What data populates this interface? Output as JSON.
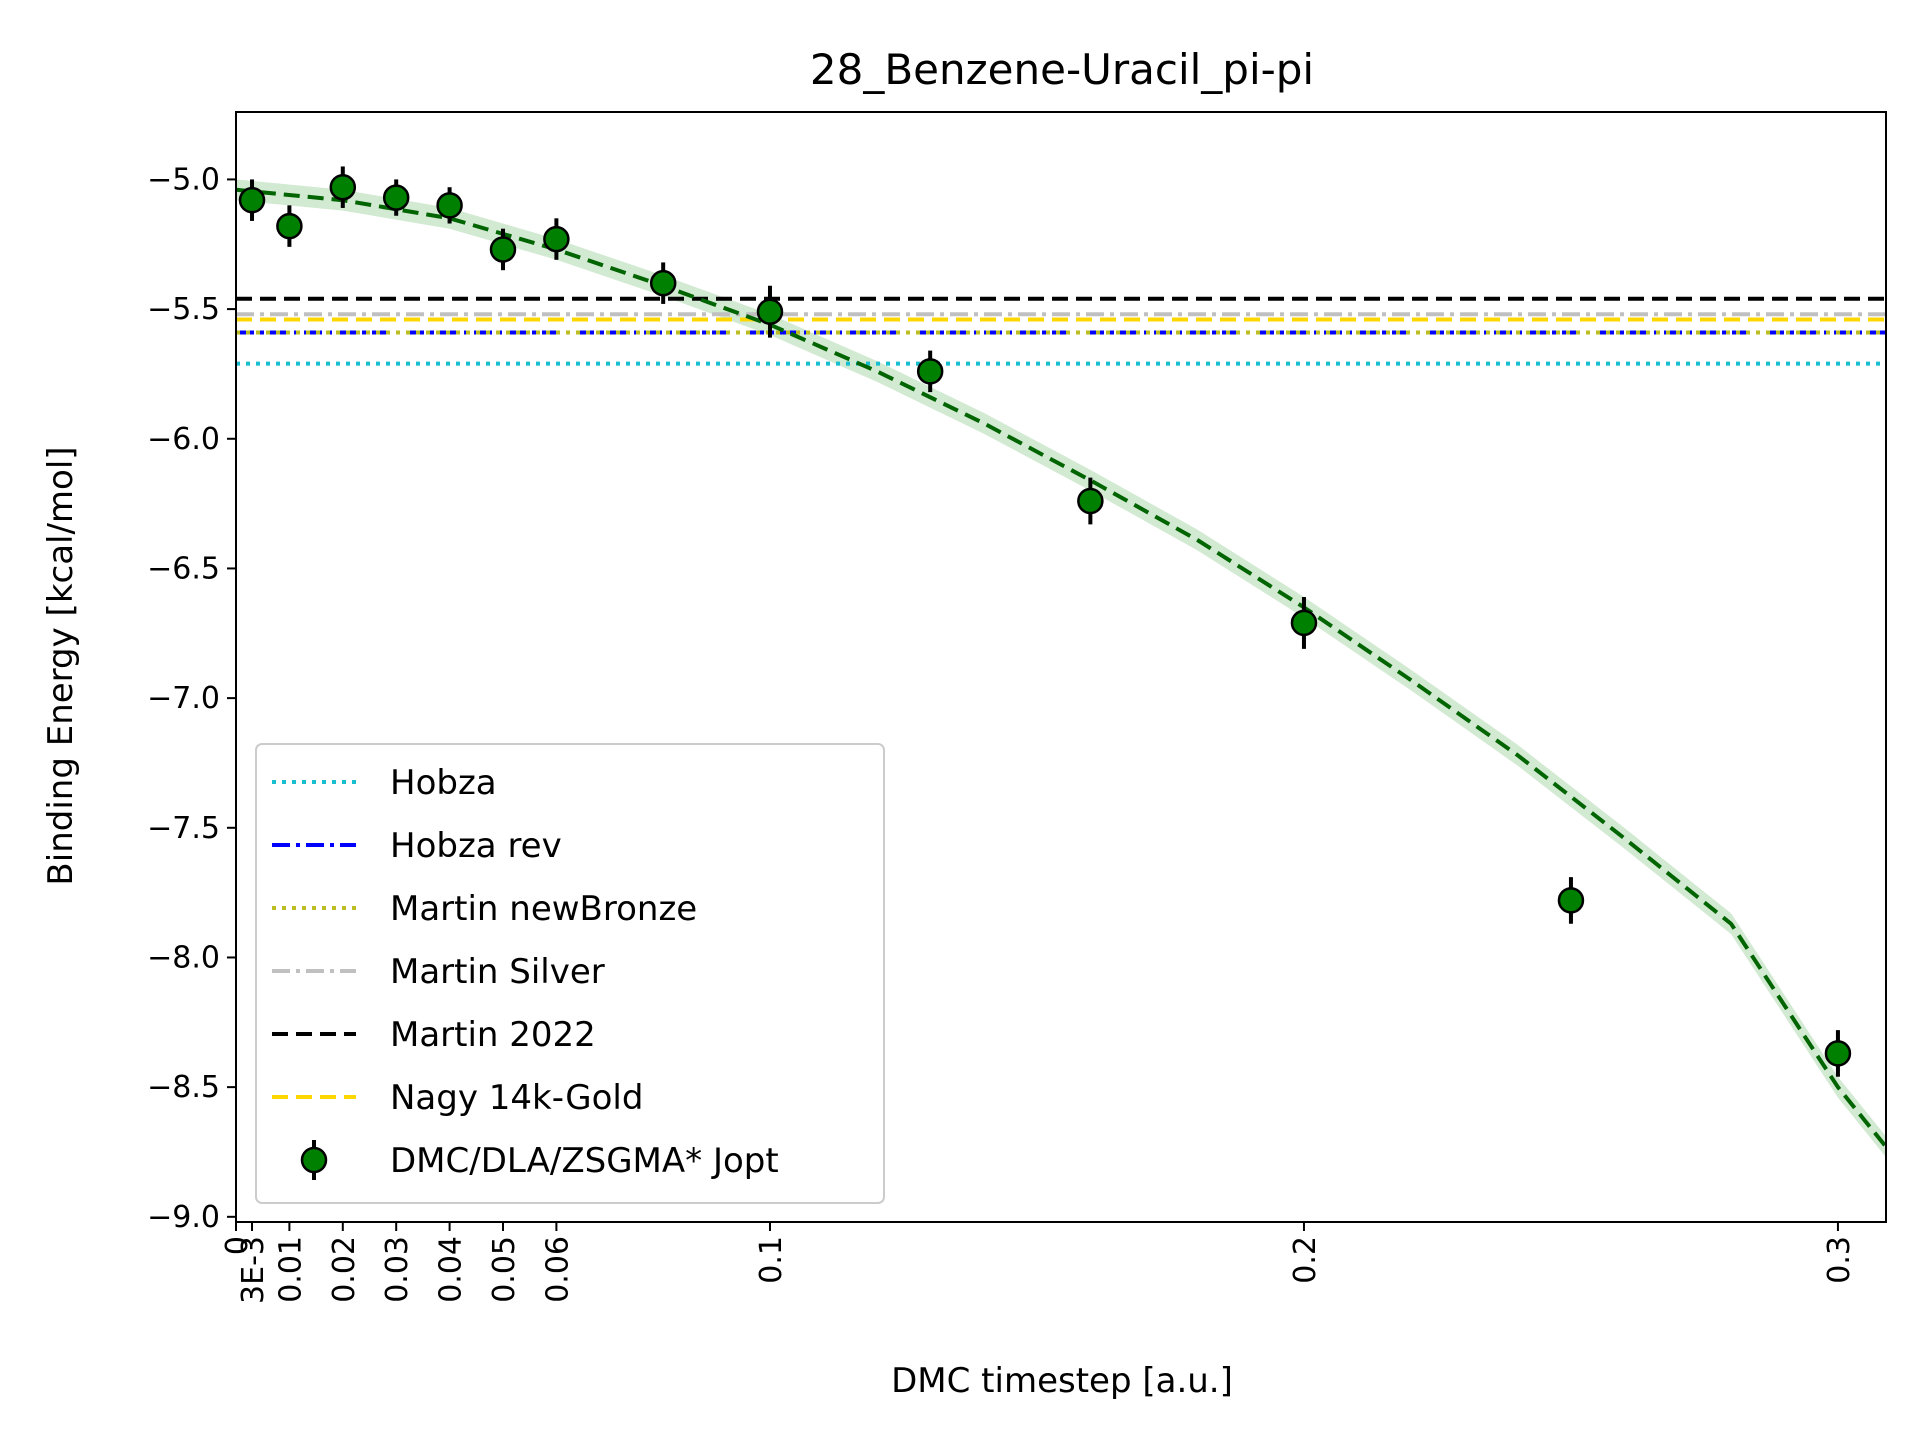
{
  "chart_data": {
    "type": "scatter",
    "title": "28_Benzene-Uracil_pi-pi",
    "xlabel": "DMC timestep [a.u.]",
    "ylabel": "Binding Energy [kcal/mol]",
    "xlim": [
      0,
      0.309
    ],
    "ylim": [
      -9.02,
      -4.74
    ],
    "x_ticks": [
      {
        "value": 0,
        "label": "0"
      },
      {
        "value": 0.003,
        "label": "3E-3"
      },
      {
        "value": 0.01,
        "label": "0.01"
      },
      {
        "value": 0.02,
        "label": "0.02"
      },
      {
        "value": 0.03,
        "label": "0.03"
      },
      {
        "value": 0.04,
        "label": "0.04"
      },
      {
        "value": 0.05,
        "label": "0.05"
      },
      {
        "value": 0.06,
        "label": "0.06"
      },
      {
        "value": 0.1,
        "label": "0.1"
      },
      {
        "value": 0.2,
        "label": "0.2"
      },
      {
        "value": 0.3,
        "label": "0.3"
      }
    ],
    "y_ticks": [
      {
        "value": -5.0,
        "label": "−5.0"
      },
      {
        "value": -5.5,
        "label": "−5.5"
      },
      {
        "value": -6.0,
        "label": "−6.0"
      },
      {
        "value": -6.5,
        "label": "−6.5"
      },
      {
        "value": -7.0,
        "label": "−7.0"
      },
      {
        "value": -7.5,
        "label": "−7.5"
      },
      {
        "value": -8.0,
        "label": "−8.0"
      },
      {
        "value": -8.5,
        "label": "−8.5"
      },
      {
        "value": -9.0,
        "label": "−9.0"
      }
    ],
    "reference_lines": [
      {
        "name": "Hobza",
        "value": -5.71,
        "color": "#17becf",
        "style": "dotted"
      },
      {
        "name": "Hobza rev",
        "value": -5.59,
        "color": "#0000ff",
        "style": "dashdot"
      },
      {
        "name": "Martin newBronze",
        "value": -5.59,
        "color": "#bcbd22",
        "style": "dotted"
      },
      {
        "name": "Martin Silver",
        "value": -5.52,
        "color": "#c0c0c0",
        "style": "dashdot"
      },
      {
        "name": "Martin 2022",
        "value": -5.46,
        "color": "#000000",
        "style": "dashed"
      },
      {
        "name": "Nagy 14k-Gold",
        "value": -5.54,
        "color": "#ffd700",
        "style": "dashed"
      }
    ],
    "series": [
      {
        "name": "DMC/DLA/ZSGMA* Jopt",
        "color": "#008000",
        "points": [
          {
            "x": 0.003,
            "y": -5.08,
            "err": 0.08
          },
          {
            "x": 0.01,
            "y": -5.18,
            "err": 0.08
          },
          {
            "x": 0.02,
            "y": -5.03,
            "err": 0.08
          },
          {
            "x": 0.03,
            "y": -5.07,
            "err": 0.07
          },
          {
            "x": 0.04,
            "y": -5.1,
            "err": 0.07
          },
          {
            "x": 0.05,
            "y": -5.27,
            "err": 0.08
          },
          {
            "x": 0.06,
            "y": -5.23,
            "err": 0.08
          },
          {
            "x": 0.08,
            "y": -5.4,
            "err": 0.08
          },
          {
            "x": 0.1,
            "y": -5.51,
            "err": 0.1
          },
          {
            "x": 0.13,
            "y": -5.74,
            "err": 0.08
          },
          {
            "x": 0.16,
            "y": -6.24,
            "err": 0.09
          },
          {
            "x": 0.2,
            "y": -6.71,
            "err": 0.1
          },
          {
            "x": 0.25,
            "y": -7.78,
            "err": 0.09
          },
          {
            "x": 0.3,
            "y": -8.37,
            "err": 0.09
          }
        ]
      }
    ],
    "fit": {
      "color": "#006400",
      "band_color": "#7fbf7f",
      "style": "dashed",
      "points": [
        {
          "x": 0.0,
          "y": -5.04
        },
        {
          "x": 0.02,
          "y": -5.08
        },
        {
          "x": 0.04,
          "y": -5.15
        },
        {
          "x": 0.06,
          "y": -5.27
        },
        {
          "x": 0.08,
          "y": -5.41
        },
        {
          "x": 0.1,
          "y": -5.56
        },
        {
          "x": 0.12,
          "y": -5.74
        },
        {
          "x": 0.14,
          "y": -5.94
        },
        {
          "x": 0.16,
          "y": -6.16
        },
        {
          "x": 0.18,
          "y": -6.39
        },
        {
          "x": 0.2,
          "y": -6.65
        },
        {
          "x": 0.22,
          "y": -6.93
        },
        {
          "x": 0.24,
          "y": -7.22
        },
        {
          "x": 0.26,
          "y": -7.54
        },
        {
          "x": 0.28,
          "y": -7.87
        },
        {
          "x": 0.3,
          "y": -8.5
        },
        {
          "x": 0.309,
          "y": -8.73
        }
      ],
      "band_width": 0.04
    },
    "grid": false,
    "legend_position": "lower-left"
  }
}
